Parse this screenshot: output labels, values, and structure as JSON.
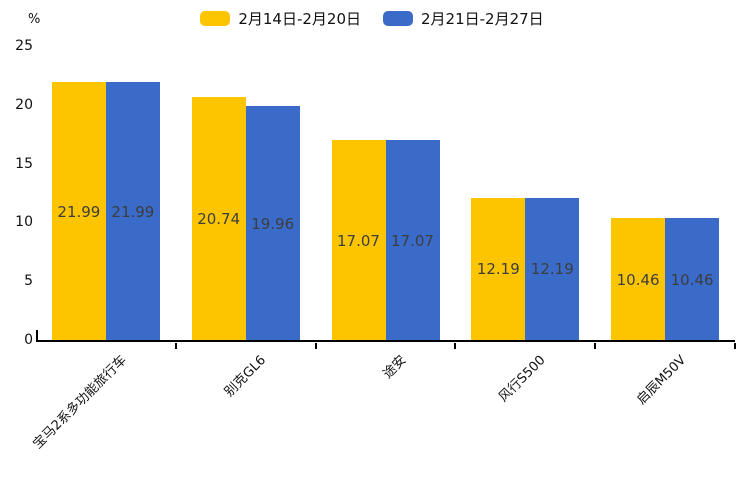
{
  "chart_data": {
    "type": "bar",
    "title": "",
    "unit_label": "%",
    "categories": [
      "宝马2系多功能旅行车",
      "别克GL6",
      "途安",
      "风行S500",
      "启辰M50V"
    ],
    "series": [
      {
        "name": "2月14日-2月20日",
        "color": "#fdc500",
        "values": [
          21.99,
          20.74,
          17.07,
          12.19,
          10.46
        ]
      },
      {
        "name": "2月21日-2月27日",
        "color": "#3a6bc9",
        "values": [
          21.99,
          19.96,
          17.07,
          12.19,
          10.46
        ]
      }
    ],
    "y_ticks": [
      "25",
      "20",
      "15",
      "10",
      "5",
      "0"
    ],
    "ylim": [
      0,
      25
    ],
    "legend_position": "top",
    "grid": false,
    "bar_value_labels_shown": true,
    "x_label_rotation_deg": -45
  }
}
